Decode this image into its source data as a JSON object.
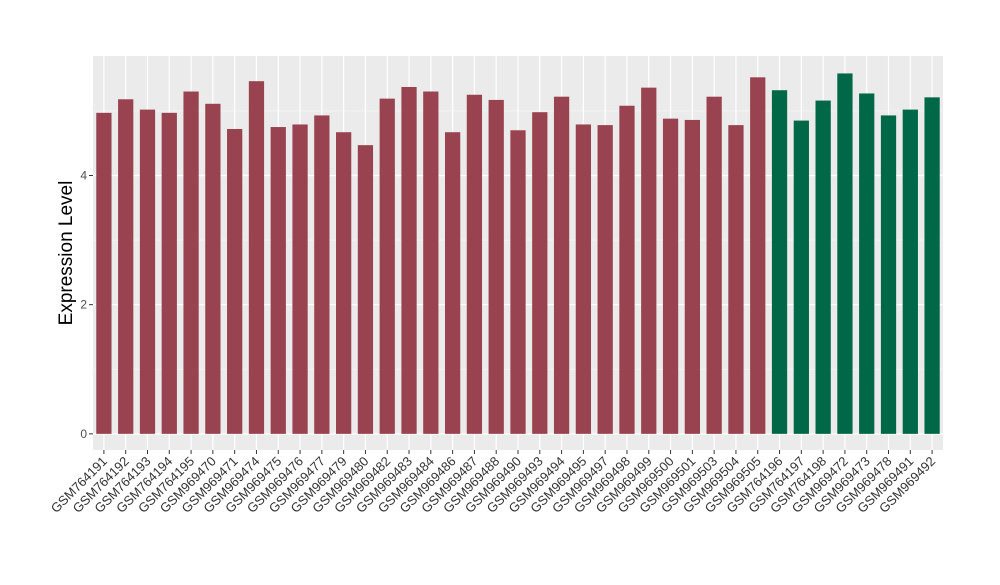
{
  "chart_data": {
    "type": "bar",
    "title": "",
    "xlabel": "",
    "ylabel": "Expression Level",
    "ylim": [
      -0.25,
      5.85
    ],
    "yticks": [
      0,
      2,
      4
    ],
    "grid": true,
    "legend": "none",
    "categories": [
      "GSM764191",
      "GSM764192",
      "GSM764193",
      "GSM764194",
      "GSM764195",
      "GSM969470",
      "GSM969471",
      "GSM969474",
      "GSM969475",
      "GSM969476",
      "GSM969477",
      "GSM969479",
      "GSM969480",
      "GSM969482",
      "GSM969483",
      "GSM969484",
      "GSM969486",
      "GSM969487",
      "GSM969488",
      "GSM969490",
      "GSM969493",
      "GSM969494",
      "GSM969495",
      "GSM969497",
      "GSM969498",
      "GSM969499",
      "GSM969500",
      "GSM969501",
      "GSM969503",
      "GSM969504",
      "GSM969505",
      "GSM764196",
      "GSM764197",
      "GSM764198",
      "GSM969472",
      "GSM969473",
      "GSM969478",
      "GSM969491",
      "GSM969492"
    ],
    "values": [
      4.97,
      5.18,
      5.02,
      4.97,
      5.3,
      5.11,
      4.72,
      5.46,
      4.75,
      4.79,
      4.93,
      4.67,
      4.47,
      5.19,
      5.37,
      5.3,
      4.67,
      5.25,
      5.17,
      4.7,
      4.98,
      5.22,
      4.79,
      4.78,
      5.08,
      5.36,
      4.88,
      4.86,
      5.22,
      4.78,
      5.52,
      5.32,
      4.85,
      5.16,
      5.58,
      5.27,
      4.93,
      5.02,
      5.21
    ],
    "bar_colors": [
      "#98434f",
      "#98434f",
      "#98434f",
      "#98434f",
      "#98434f",
      "#98434f",
      "#98434f",
      "#98434f",
      "#98434f",
      "#98434f",
      "#98434f",
      "#98434f",
      "#98434f",
      "#98434f",
      "#98434f",
      "#98434f",
      "#98434f",
      "#98434f",
      "#98434f",
      "#98434f",
      "#98434f",
      "#98434f",
      "#98434f",
      "#98434f",
      "#98434f",
      "#98434f",
      "#98434f",
      "#98434f",
      "#98434f",
      "#98434f",
      "#98434f",
      "#006847",
      "#006847",
      "#006847",
      "#006847",
      "#006847",
      "#006847",
      "#006847",
      "#006847"
    ],
    "colors": {
      "panel_background": "#ebebeb",
      "grid_major": "#ffffff",
      "grid_minor": "#f5f5f5",
      "group_1": "#98434f",
      "group_2": "#006847"
    }
  }
}
